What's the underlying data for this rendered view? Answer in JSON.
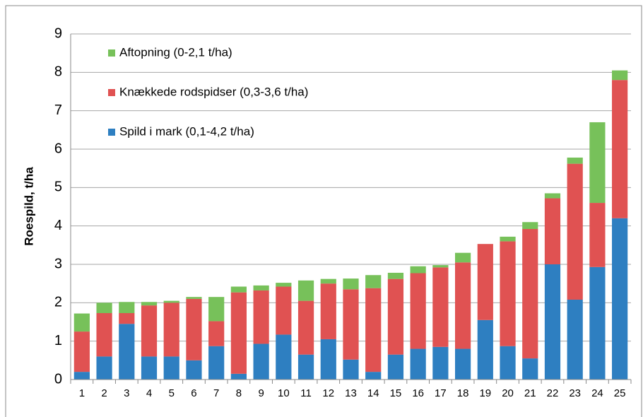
{
  "chart_data": {
    "type": "stacked_bar",
    "y_label": "Roespild, t/ha",
    "categories": [
      "1",
      "2",
      "3",
      "4",
      "5",
      "6",
      "7",
      "8",
      "9",
      "10",
      "11",
      "12",
      "13",
      "14",
      "15",
      "16",
      "17",
      "18",
      "19",
      "20",
      "21",
      "22",
      "23",
      "24",
      "25"
    ],
    "series": [
      {
        "name": "Spild i mark (0,1-4,2 t/ha)",
        "color": "#2e7fc1",
        "values": [
          0.2,
          0.6,
          1.45,
          0.6,
          0.6,
          0.5,
          0.87,
          0.15,
          0.93,
          1.17,
          0.65,
          1.05,
          0.52,
          0.2,
          0.65,
          0.8,
          0.85,
          0.8,
          1.55,
          0.87,
          0.55,
          3.0,
          2.08,
          2.93,
          4.2
        ]
      },
      {
        "name": "Knækkede rodspidser (0,3-3,6 t/ha)",
        "color": "#e05252",
        "values": [
          1.05,
          1.13,
          0.28,
          1.33,
          1.4,
          1.6,
          0.65,
          2.12,
          1.39,
          1.25,
          1.4,
          1.45,
          1.83,
          2.18,
          1.97,
          1.97,
          2.07,
          2.25,
          1.98,
          2.73,
          3.37,
          1.72,
          3.54,
          1.67,
          3.6
        ]
      },
      {
        "name": "Aftopning (0-2,1 t/ha)",
        "color": "#77c15a",
        "values": [
          0.47,
          0.27,
          0.29,
          0.09,
          0.05,
          0.05,
          0.63,
          0.15,
          0.13,
          0.1,
          0.53,
          0.12,
          0.28,
          0.34,
          0.16,
          0.18,
          0.06,
          0.25,
          0,
          0.12,
          0.18,
          0.13,
          0.16,
          2.1,
          0.25
        ]
      }
    ],
    "ylim": [
      0,
      9
    ],
    "yticks": [
      0,
      1,
      2,
      3,
      4,
      5,
      6,
      7,
      8,
      9
    ],
    "grid": true
  }
}
